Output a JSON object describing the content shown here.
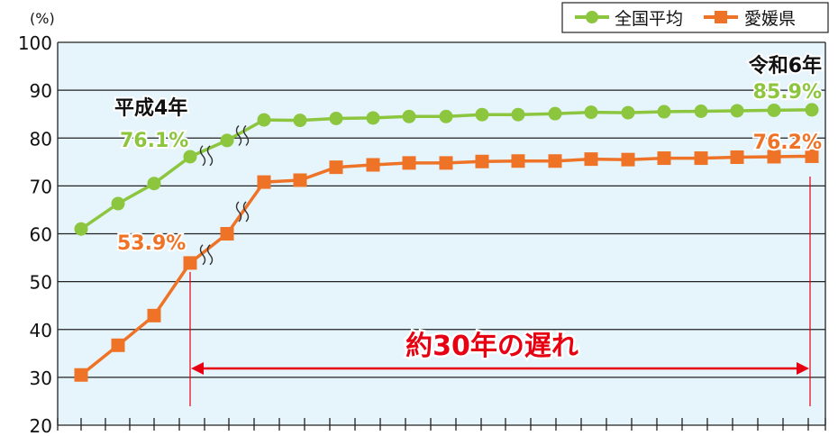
{
  "chart_data": {
    "type": "line",
    "unit_label": "(%)",
    "ylim": [
      20,
      100
    ],
    "yticks": [
      "20",
      "30",
      "40",
      "50",
      "60",
      "70",
      "80",
      "90",
      "100"
    ],
    "grid": true,
    "legend_position": "top-right",
    "x_index": [
      0,
      1,
      2,
      3,
      4,
      5,
      6,
      7,
      8,
      9,
      10,
      11,
      12,
      13,
      14,
      15,
      16,
      17,
      18,
      19,
      20,
      21,
      22,
      23,
      24,
      25,
      26,
      27,
      28,
      29,
      30,
      31,
      32,
      33,
      34,
      35
    ],
    "series": [
      {
        "name": "全国平均",
        "color": "#8cc63f",
        "marker": "circle",
        "values": [
          61,
          66.3,
          70.5,
          76.1,
          79.5,
          83.8,
          83.7,
          84.1,
          84.2,
          84.5,
          84.5,
          84.9,
          84.9,
          85.1,
          85.4,
          85.3,
          85.5,
          85.6,
          85.7,
          85.8,
          85.9
        ]
      },
      {
        "name": "愛媛県",
        "color": "#ee7326",
        "marker": "square",
        "values": [
          30.5,
          36.7,
          42.9,
          53.9,
          60,
          70.8,
          71.2,
          73.9,
          74.4,
          74.8,
          74.8,
          75.1,
          75.2,
          75.2,
          75.6,
          75.5,
          75.8,
          75.8,
          76,
          76.1,
          76.2
        ]
      }
    ],
    "annotations": {
      "heisei4_label": "平成4年",
      "national_h4_value": "76.1%",
      "ehime_h4_value": "53.9%",
      "reiwa6_label": "令和6年",
      "national_r6_value": "85.9%",
      "ehime_r6_value": "76.2%",
      "gap_label": "約30年の遅れ"
    },
    "colors": {
      "plot_background": "#e6f4fb",
      "national": "#8cc63f",
      "ehime": "#ee7326",
      "gap": "#e60012",
      "gridline": "#222222"
    }
  }
}
